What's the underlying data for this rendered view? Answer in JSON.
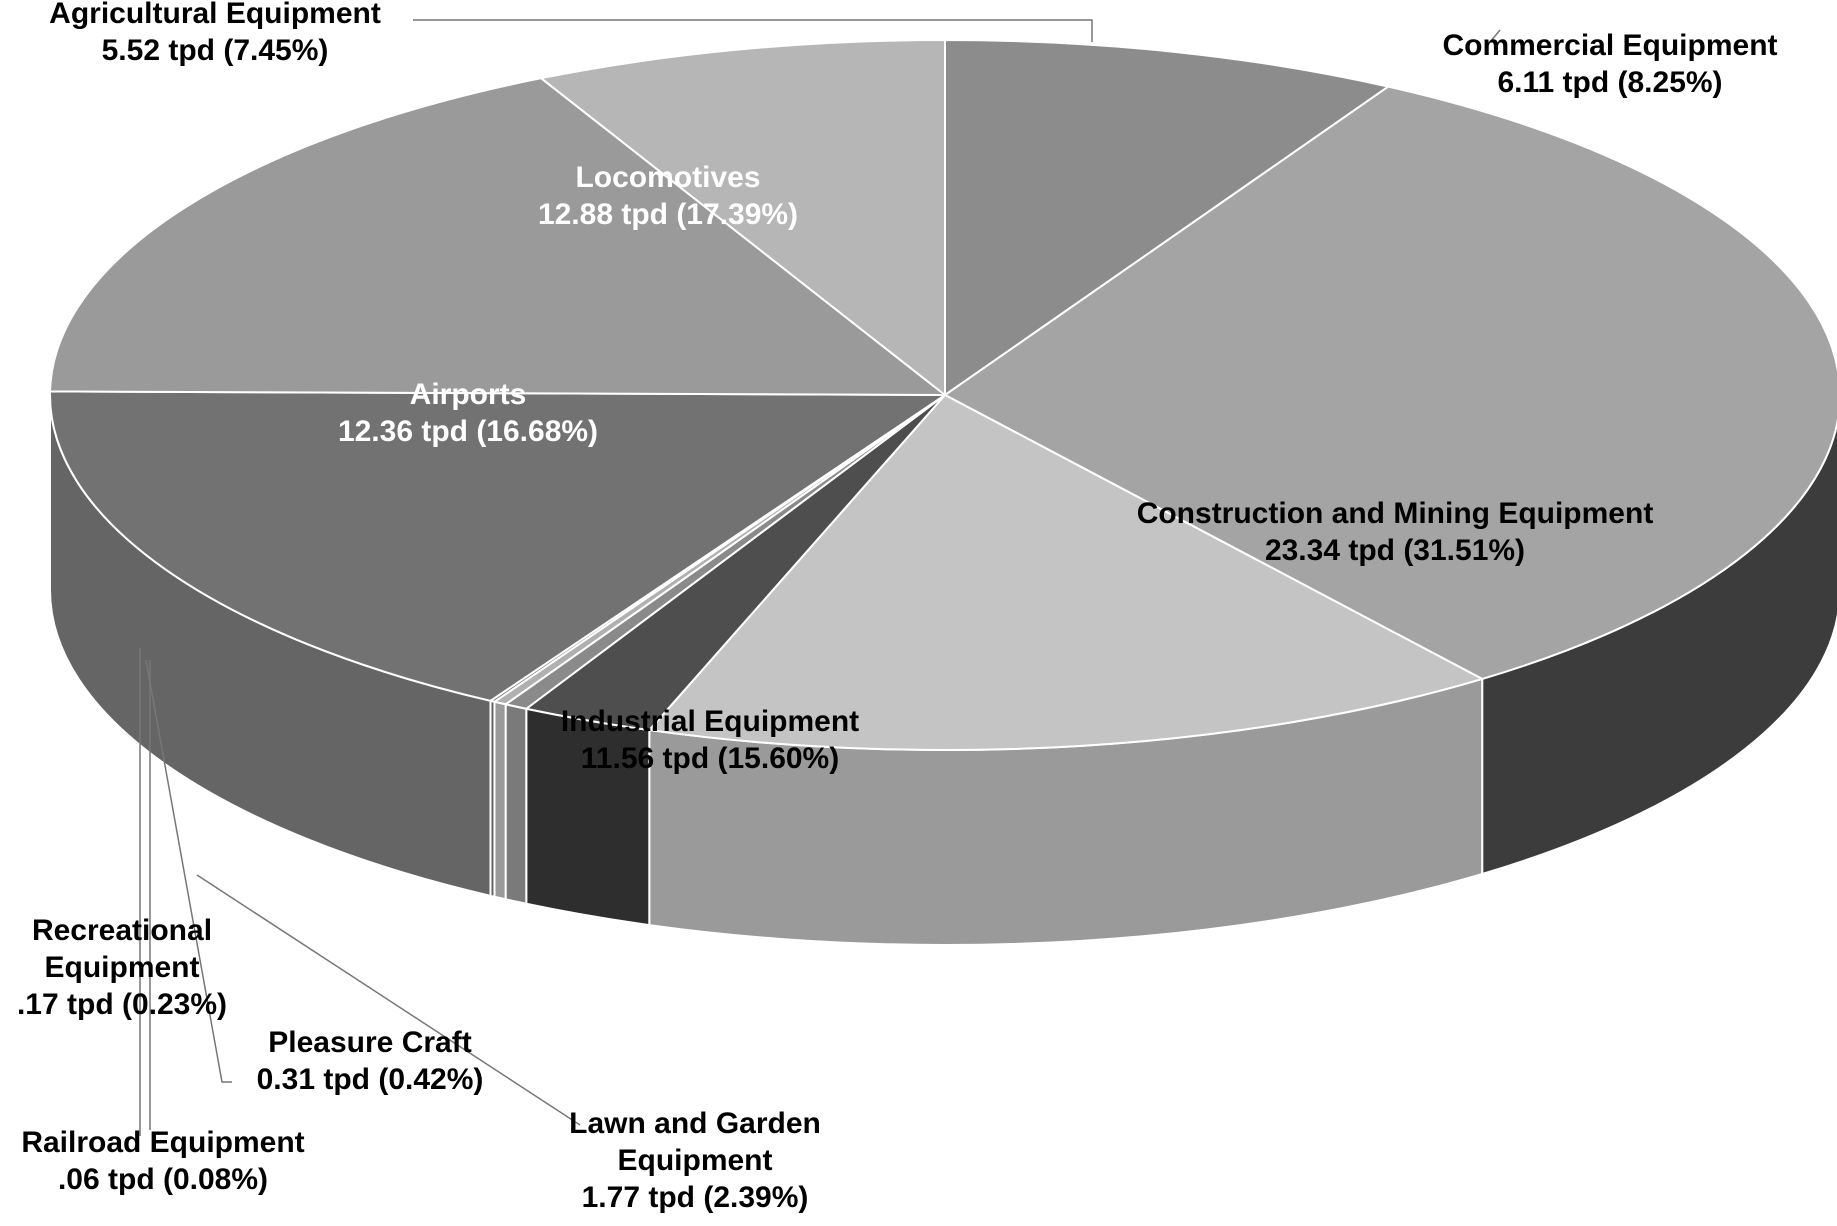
{
  "chart_data": {
    "type": "pie",
    "style": "3d",
    "units": "tpd",
    "slices": [
      {
        "id": "commercial",
        "name": "Commercial Equipment",
        "value": 6.11,
        "percent": 8.25,
        "value_label": "6.11 tpd (8.25%)",
        "color": "#8c8c8c",
        "side_color": "#5c5c5c"
      },
      {
        "id": "construction",
        "name": "Construction and Mining Equipment",
        "value": 23.34,
        "percent": 31.51,
        "value_label": "23.34 tpd (31.51%)",
        "color": "#a4a4a4",
        "side_color": "#3c3c3c"
      },
      {
        "id": "industrial",
        "name": "Industrial Equipment",
        "value": 11.56,
        "percent": 15.6,
        "value_label": "11.56 tpd (15.60%)",
        "color": "#c4c4c4",
        "side_color": "#9a9a9a"
      },
      {
        "id": "lawn",
        "name": "Lawn and Garden Equipment",
        "value": 1.77,
        "percent": 2.39,
        "value_label": "1.77 tpd (2.39%)",
        "color": "#4e4e4e",
        "side_color": "#2e2e2e"
      },
      {
        "id": "pleasure",
        "name": "Pleasure Craft",
        "value": 0.31,
        "percent": 0.42,
        "value_label": "0.31 tpd (0.42%)",
        "color": "#8a8a8a",
        "side_color": "#7a7a7a"
      },
      {
        "id": "recreational",
        "name": "Recreational Equipment",
        "value": 0.17,
        "percent": 0.23,
        "value_label": ".17 tpd (0.23%)",
        "color": "#b0b0b0",
        "side_color": "#9a9a9a"
      },
      {
        "id": "railroad",
        "name": "Railroad Equipment",
        "value": 0.06,
        "percent": 0.08,
        "value_label": ".06 tpd (0.08%)",
        "color": "#707070",
        "side_color": "#606060"
      },
      {
        "id": "airports",
        "name": "Airports",
        "value": 12.36,
        "percent": 16.68,
        "value_label": "12.36 tpd (16.68%)",
        "color": "#727272",
        "side_color": "#656565"
      },
      {
        "id": "locomotives",
        "name": "Locomotives",
        "value": 12.88,
        "percent": 17.39,
        "value_label": "12.88 tpd (17.39%)",
        "color": "#9a9a9a",
        "side_color": "#7a7a7a"
      },
      {
        "id": "agricultural",
        "name": "Agricultural Equipment",
        "value": 5.52,
        "percent": 7.45,
        "value_label": "5.52 tpd (7.45%)",
        "color": "#b6b6b6",
        "side_color": "#9a9a9a"
      }
    ],
    "label_lines": {
      "commercial": [
        "Commercial Equipment",
        "6.11 tpd (8.25%)"
      ],
      "construction": [
        "Construction and Mining Equipment",
        "23.34 tpd (31.51%)"
      ],
      "industrial": [
        "Industrial Equipment",
        "11.56 tpd (15.60%)"
      ],
      "lawn": [
        "Lawn and Garden",
        "Equipment",
        "1.77 tpd (2.39%)"
      ],
      "pleasure": [
        "Pleasure Craft",
        "0.31 tpd (0.42%)"
      ],
      "recreational": [
        "Recreational",
        "Equipment",
        ".17 tpd (0.23%)"
      ],
      "railroad": [
        "Railroad Equipment",
        ".06 tpd (0.08%)"
      ],
      "airports": [
        "Airports",
        "12.36 tpd (16.68%)"
      ],
      "locomotives": [
        "Locomotives",
        "12.88 tpd (17.39%)"
      ],
      "agricultural": [
        "Agricultural Equipment",
        "5.52 tpd (7.45%)"
      ]
    }
  }
}
